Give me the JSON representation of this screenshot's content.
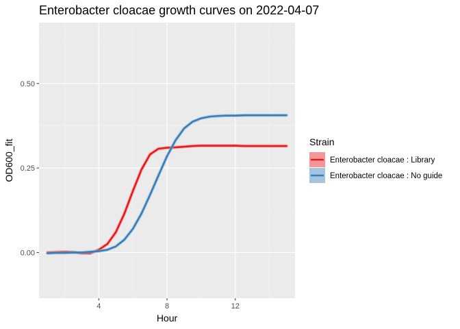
{
  "chart_data": {
    "type": "line",
    "title": "Enterobacter cloacae growth curves on 2022-04-07",
    "xlabel": "Hour",
    "ylabel": "OD600_fit",
    "xlim": [
      0.5,
      15.5
    ],
    "ylim": [
      -0.135,
      0.68
    ],
    "x_ticks": [
      4,
      8,
      12
    ],
    "x_tick_labels": [
      "4",
      "8",
      "12"
    ],
    "y_ticks": [
      0.0,
      0.25,
      0.5
    ],
    "y_tick_labels": [
      "0.00",
      "0.25",
      "0.50"
    ],
    "grid": true,
    "legend": {
      "title": "Strain",
      "position": "right"
    },
    "series": [
      {
        "name": "Enterobacter cloacae : Library",
        "color": "#E41A1C",
        "band_color": "#F08C8D",
        "x": [
          1.0,
          1.5,
          2.0,
          2.5,
          3.0,
          3.5,
          4.0,
          4.5,
          5.0,
          5.5,
          6.0,
          6.5,
          7.0,
          7.5,
          8.0,
          8.5,
          9.0,
          9.5,
          10.0,
          10.5,
          11.0,
          11.5,
          12.0,
          12.5,
          13.0,
          13.5,
          14.0,
          14.5,
          15.0
        ],
        "y": [
          0.0,
          0.001,
          0.002,
          0.001,
          -0.002,
          -0.002,
          0.008,
          0.025,
          0.06,
          0.115,
          0.182,
          0.245,
          0.29,
          0.307,
          0.31,
          0.311,
          0.313,
          0.315,
          0.316,
          0.316,
          0.316,
          0.316,
          0.316,
          0.315,
          0.315,
          0.315,
          0.315,
          0.315,
          0.315
        ]
      },
      {
        "name": "Enterobacter cloacae : No guide",
        "color": "#377EB8",
        "band_color": "#9BBEDB",
        "x": [
          1.0,
          1.5,
          2.0,
          2.5,
          3.0,
          3.5,
          4.0,
          4.5,
          5.0,
          5.5,
          6.0,
          6.5,
          7.0,
          7.5,
          8.0,
          8.5,
          9.0,
          9.5,
          10.0,
          10.5,
          11.0,
          11.5,
          12.0,
          12.5,
          13.0,
          13.5,
          14.0,
          14.5,
          15.0
        ],
        "y": [
          -0.002,
          -0.001,
          -0.001,
          0.0,
          0.0,
          0.002,
          0.004,
          0.008,
          0.018,
          0.038,
          0.07,
          0.115,
          0.17,
          0.228,
          0.285,
          0.332,
          0.367,
          0.387,
          0.397,
          0.402,
          0.404,
          0.405,
          0.405,
          0.406,
          0.406,
          0.406,
          0.406,
          0.406,
          0.406
        ]
      }
    ]
  }
}
